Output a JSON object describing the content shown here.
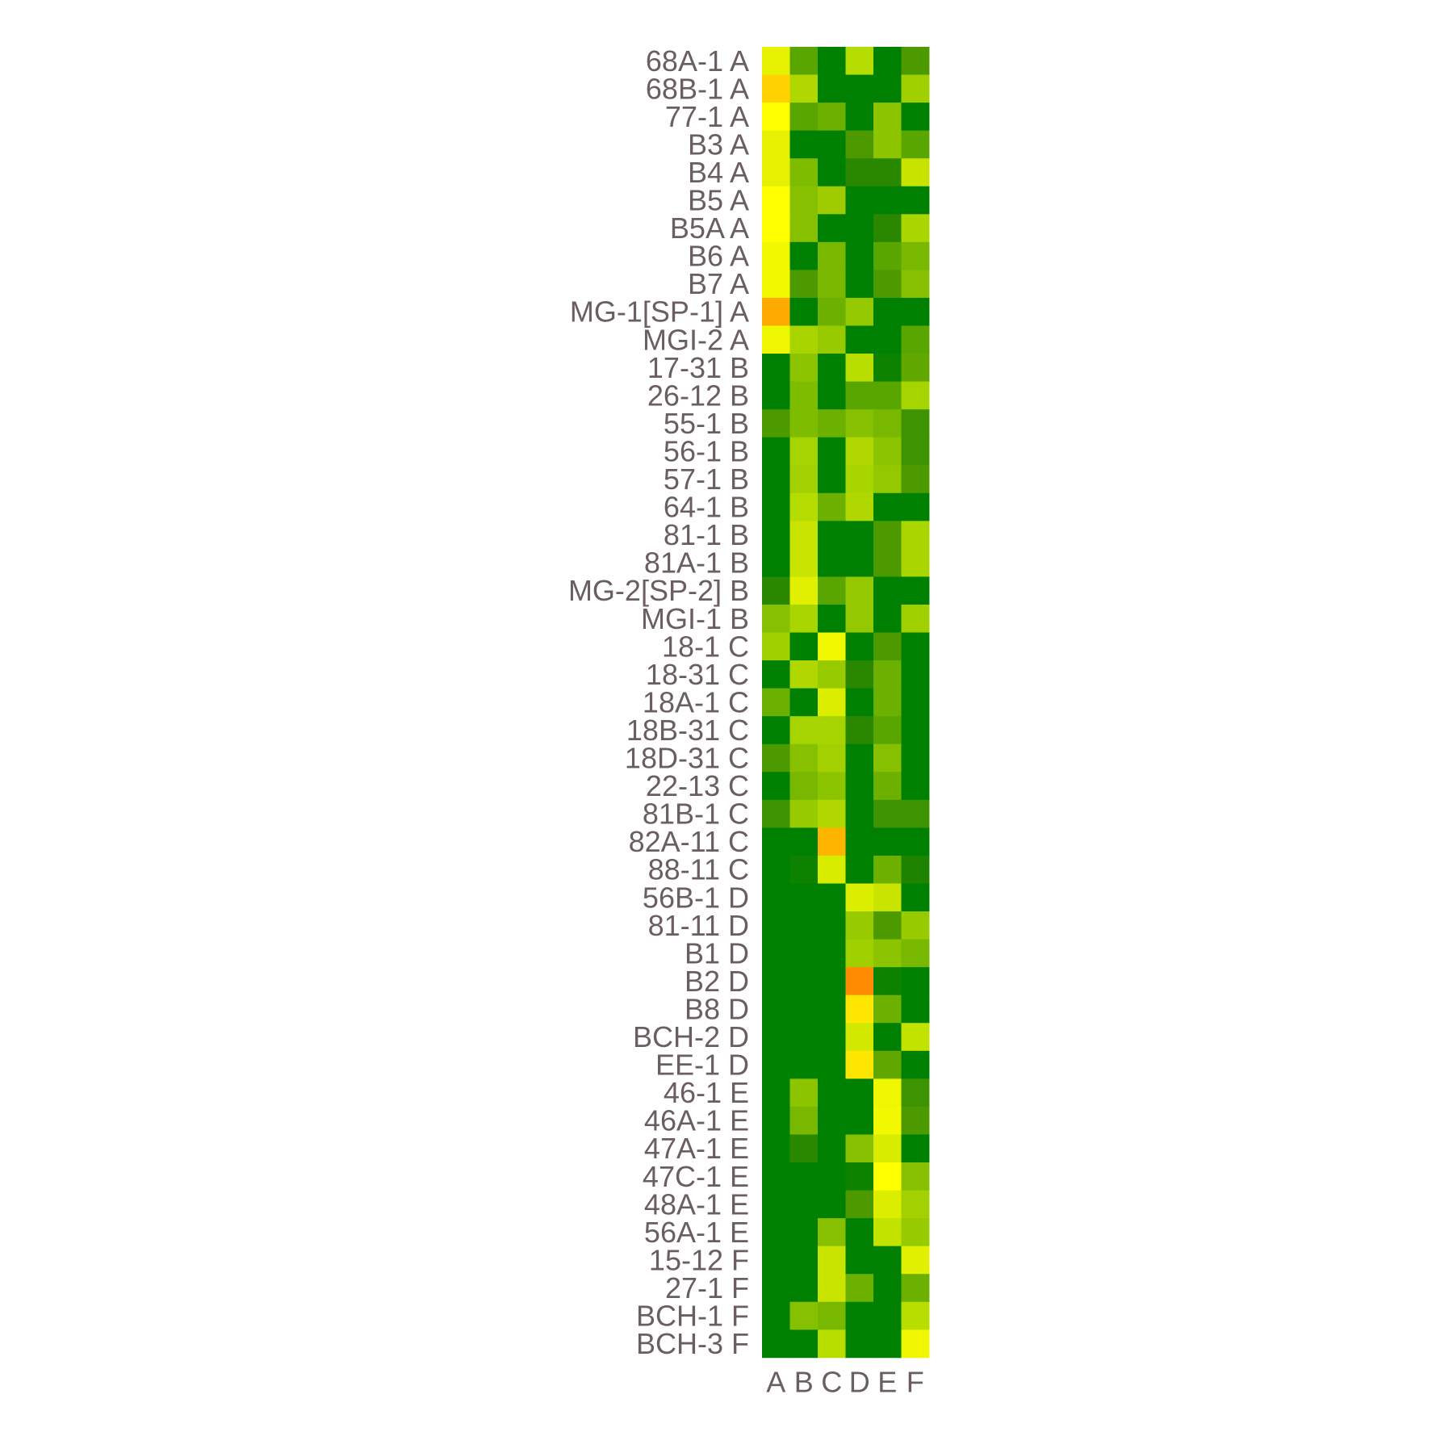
{
  "chart_data": {
    "type": "heatmap",
    "title": "",
    "xlabel": "",
    "ylabel": "",
    "legend": "none",
    "color_scale": [
      "#008000",
      "#ffff00",
      "#ff8c00"
    ],
    "columns": [
      "A",
      "B",
      "C",
      "D",
      "E",
      "F"
    ],
    "rows": [
      {
        "label": "68A-1 A",
        "cells": [
          "#e6f200",
          "#5aa600",
          "#008000",
          "#b4dc00",
          "#008000",
          "#4c9a00"
        ]
      },
      {
        "label": "68B-1 A",
        "cells": [
          "#ffd200",
          "#b0d800",
          "#008000",
          "#008000",
          "#008000",
          "#a0d000"
        ]
      },
      {
        "label": "77-1 A",
        "cells": [
          "#ffff00",
          "#5aa600",
          "#6cb000",
          "#008000",
          "#8cc400",
          "#008000"
        ]
      },
      {
        "label": "B3 A",
        "cells": [
          "#e6f000",
          "#008000",
          "#008000",
          "#4c9a00",
          "#8cc400",
          "#5aa600"
        ]
      },
      {
        "label": "B4 A",
        "cells": [
          "#e6f000",
          "#7ebc00",
          "#008000",
          "#2a8800",
          "#2a8800",
          "#c6e400"
        ]
      },
      {
        "label": "B5 A",
        "cells": [
          "#ffff00",
          "#86c000",
          "#9ecc00",
          "#008000",
          "#008000",
          "#008000"
        ]
      },
      {
        "label": "B5A A",
        "cells": [
          "#ffff00",
          "#86c000",
          "#008000",
          "#008000",
          "#2a8800",
          "#aad600"
        ]
      },
      {
        "label": "B6 A",
        "cells": [
          "#f2f800",
          "#008000",
          "#78b800",
          "#008000",
          "#5aa600",
          "#78b800"
        ]
      },
      {
        "label": "B7 A",
        "cells": [
          "#f2f800",
          "#4c9a00",
          "#78b800",
          "#008000",
          "#4c9a00",
          "#86c000"
        ]
      },
      {
        "label": "MG-1[SP-1] A",
        "cells": [
          "#ffaa00",
          "#008000",
          "#6cb000",
          "#94c800",
          "#008000",
          "#008000"
        ]
      },
      {
        "label": "MGI-2 A",
        "cells": [
          "#eef600",
          "#a8d400",
          "#98ca00",
          "#008000",
          "#008000",
          "#5aa600"
        ]
      },
      {
        "label": "17-31 B",
        "cells": [
          "#008000",
          "#8cc400",
          "#008000",
          "#b8de00",
          "#0c8200",
          "#60a800"
        ]
      },
      {
        "label": "26-12 B",
        "cells": [
          "#008000",
          "#7ebc00",
          "#008000",
          "#5aa600",
          "#5aa600",
          "#a6d400"
        ]
      },
      {
        "label": "55-1 B",
        "cells": [
          "#4c9a00",
          "#7ebc00",
          "#6cb000",
          "#86c000",
          "#78b800",
          "#3e9400"
        ]
      },
      {
        "label": "56-1 B",
        "cells": [
          "#008000",
          "#a6d400",
          "#008000",
          "#b0d800",
          "#8cc400",
          "#3e9400"
        ]
      },
      {
        "label": "57-1 B",
        "cells": [
          "#008000",
          "#a2d000",
          "#008000",
          "#a8d400",
          "#94c800",
          "#4c9a00"
        ]
      },
      {
        "label": "64-1 B",
        "cells": [
          "#008000",
          "#b4dc00",
          "#6cb000",
          "#b0d800",
          "#008000",
          "#008000"
        ]
      },
      {
        "label": "81-1 B",
        "cells": [
          "#008000",
          "#c8e400",
          "#008000",
          "#008000",
          "#4c9a00",
          "#aad600"
        ]
      },
      {
        "label": "81A-1 B",
        "cells": [
          "#008000",
          "#c8e400",
          "#008000",
          "#008000",
          "#4c9a00",
          "#aad600"
        ]
      },
      {
        "label": "MG-2[SP-2] B",
        "cells": [
          "#2a8800",
          "#e0f000",
          "#5aa600",
          "#94c800",
          "#008000",
          "#008000"
        ]
      },
      {
        "label": "MGI-1 B",
        "cells": [
          "#86c000",
          "#aad600",
          "#008000",
          "#94c800",
          "#008000",
          "#a0d000"
        ]
      },
      {
        "label": "18-1 C",
        "cells": [
          "#a0d000",
          "#008000",
          "#f2f800",
          "#008000",
          "#4c9a00",
          "#008000"
        ]
      },
      {
        "label": "18-31 C",
        "cells": [
          "#008000",
          "#b0d800",
          "#98ca00",
          "#2a8800",
          "#6cb000",
          "#008000"
        ]
      },
      {
        "label": "18A-1 C",
        "cells": [
          "#6cb000",
          "#008000",
          "#dcee00",
          "#008000",
          "#6cb000",
          "#008000"
        ]
      },
      {
        "label": "18B-31 C",
        "cells": [
          "#008000",
          "#a6d400",
          "#a6d400",
          "#2a8800",
          "#5aa600",
          "#008000"
        ]
      },
      {
        "label": "18D-31 C",
        "cells": [
          "#4c9a00",
          "#86c000",
          "#a2d000",
          "#008000",
          "#86c000",
          "#008000"
        ]
      },
      {
        "label": "22-13 C",
        "cells": [
          "#008000",
          "#78b800",
          "#8cc400",
          "#008000",
          "#6cb000",
          "#008000"
        ]
      },
      {
        "label": "81B-1 C",
        "cells": [
          "#3e9400",
          "#98ca00",
          "#b0d800",
          "#008000",
          "#3e9400",
          "#3e9400"
        ]
      },
      {
        "label": "82A-11 C",
        "cells": [
          "#008000",
          "#008000",
          "#ffb400",
          "#008000",
          "#008000",
          "#008000"
        ]
      },
      {
        "label": "88-11 C",
        "cells": [
          "#008000",
          "#0c8200",
          "#d8ec00",
          "#008000",
          "#6cb000",
          "#1e8400"
        ]
      },
      {
        "label": "56B-1 D",
        "cells": [
          "#008000",
          "#008000",
          "#008000",
          "#dcee00",
          "#c8e400",
          "#008000"
        ]
      },
      {
        "label": "81-11 D",
        "cells": [
          "#008000",
          "#008000",
          "#008000",
          "#98ca00",
          "#4c9a00",
          "#98ca00"
        ]
      },
      {
        "label": "B1 D",
        "cells": [
          "#008000",
          "#008000",
          "#008000",
          "#a0d000",
          "#8cc400",
          "#78b800"
        ]
      },
      {
        "label": "B2 D",
        "cells": [
          "#008000",
          "#008000",
          "#008000",
          "#ff8c00",
          "#0c8200",
          "#008000"
        ]
      },
      {
        "label": "B8 D",
        "cells": [
          "#008000",
          "#008000",
          "#008000",
          "#ffe600",
          "#6cb000",
          "#008000"
        ]
      },
      {
        "label": "BCH-2 D",
        "cells": [
          "#008000",
          "#008000",
          "#008000",
          "#d2e800",
          "#008000",
          "#c2e200"
        ]
      },
      {
        "label": "EE-1 D",
        "cells": [
          "#008000",
          "#008000",
          "#008000",
          "#ffe600",
          "#60a800",
          "#008000"
        ]
      },
      {
        "label": "46-1 E",
        "cells": [
          "#008000",
          "#8cc400",
          "#008000",
          "#008000",
          "#eef600",
          "#3e9400"
        ]
      },
      {
        "label": "46A-1 E",
        "cells": [
          "#008000",
          "#78b800",
          "#008000",
          "#008000",
          "#f2f800",
          "#4c9a00"
        ]
      },
      {
        "label": "47A-1 E",
        "cells": [
          "#008000",
          "#2a8800",
          "#008000",
          "#86c000",
          "#d8ec00",
          "#008000"
        ]
      },
      {
        "label": "47C-1 E",
        "cells": [
          "#008000",
          "#008000",
          "#008000",
          "#0c8200",
          "#ffff00",
          "#86c000"
        ]
      },
      {
        "label": "48A-1 E",
        "cells": [
          "#008000",
          "#008000",
          "#008000",
          "#4c9a00",
          "#dcee00",
          "#a2d000"
        ]
      },
      {
        "label": "56A-1 E",
        "cells": [
          "#008000",
          "#008000",
          "#86c000",
          "#008000",
          "#c2e200",
          "#98ca00"
        ]
      },
      {
        "label": "15-12 F",
        "cells": [
          "#008000",
          "#008000",
          "#c8e400",
          "#008000",
          "#008000",
          "#e0f000"
        ]
      },
      {
        "label": "27-1 F",
        "cells": [
          "#008000",
          "#008000",
          "#c8e400",
          "#6cb000",
          "#008000",
          "#6cb000"
        ]
      },
      {
        "label": "BCH-1 F",
        "cells": [
          "#008000",
          "#86c000",
          "#78b800",
          "#008000",
          "#008000",
          "#b8de00"
        ]
      },
      {
        "label": "BCH-3 F",
        "cells": [
          "#008000",
          "#008000",
          "#b8de00",
          "#008000",
          "#008000",
          "#f0f600"
        ]
      }
    ]
  }
}
